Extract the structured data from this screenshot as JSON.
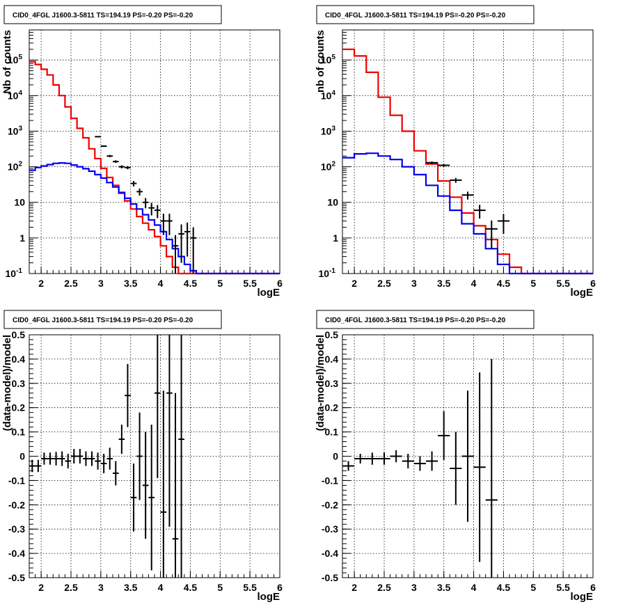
{
  "chart_data": [
    {
      "type": "line",
      "title": "CID0_4FGL J1600.3-5811 TS=194.19 PS=-0.20 PS=-0.20",
      "xlabel": "logE",
      "ylabel": "Nb of counts",
      "xlim": [
        1.8,
        6.0
      ],
      "ylim": [
        0.1,
        700000
      ],
      "yscale": "log",
      "grid": true,
      "x_ticks": [
        "2",
        "2.5",
        "3",
        "3.5",
        "4",
        "4.5",
        "5",
        "5.5",
        "6"
      ],
      "y_ticks": [
        "10^-1",
        "1",
        "10",
        "10^2",
        "10^3",
        "10^4",
        "10^5"
      ],
      "bin_edges": [
        1.8,
        1.9,
        2.0,
        2.1,
        2.2,
        2.3,
        2.4,
        2.5,
        2.6,
        2.7,
        2.8,
        2.9,
        3.0,
        3.1,
        3.2,
        3.3,
        3.4,
        3.5,
        3.6,
        3.7,
        3.8,
        3.9,
        4.0,
        4.1,
        4.2,
        4.3,
        4.4,
        4.5,
        4.6,
        4.7,
        4.8,
        4.9,
        5.0,
        5.1,
        5.2,
        5.3,
        5.4,
        5.5,
        5.6,
        5.7,
        5.8,
        5.9,
        6.0
      ],
      "series": [
        {
          "color": "#ee0000",
          "values": [
            90000,
            75000,
            55000,
            38000,
            20000,
            10000,
            4800,
            2300,
            1200,
            650,
            320,
            170,
            90,
            50,
            30,
            18,
            11,
            6.5,
            4,
            2.6,
            1.7,
            1.1,
            0.6,
            0.3,
            0.15,
            0.1,
            0.1,
            0.1,
            0.1,
            0.1,
            0.1,
            0.1,
            0.1,
            0.1,
            0.1,
            0.1,
            0.1,
            0.1,
            0.1,
            0.1,
            0.1,
            0.1
          ]
        },
        {
          "color": "#0000ee",
          "values": [
            80,
            95,
            105,
            115,
            125,
            128,
            125,
            112,
            100,
            88,
            75,
            60,
            48,
            36,
            27,
            19,
            13,
            9,
            6.5,
            4.5,
            3.2,
            2.3,
            1.5,
            0.9,
            0.5,
            0.3,
            0.18,
            0.12,
            0.1,
            0.1,
            0.1,
            0.1,
            0.1,
            0.1,
            0.1,
            0.1,
            0.1,
            0.1,
            0.1,
            0.1,
            0.1,
            0.1
          ]
        },
        {
          "color": "#000000",
          "x": [
            2.95,
            3.05,
            3.15,
            3.25,
            3.35,
            3.45,
            3.55,
            3.65,
            3.75,
            3.85,
            3.95,
            4.05,
            4.15,
            4.25,
            4.35,
            4.45,
            4.55
          ],
          "values": [
            700,
            380,
            200,
            140,
            100,
            95,
            34,
            20,
            10,
            7,
            6,
            3,
            3,
            0.6,
            1.3,
            1.5,
            1
          ],
          "errors": [
            26,
            19,
            14,
            12,
            10,
            10,
            6,
            4.5,
            3.2,
            2.7,
            2.4,
            1.8,
            1.8,
            0.6,
            1.1,
            1.2,
            1
          ]
        }
      ]
    },
    {
      "type": "line",
      "title": "CID0_4FGL J1600.3-5811 TS=194.19 PS=-0.20 PS=-0.20",
      "xlabel": "logE",
      "ylabel": "nb of counts",
      "xlim": [
        1.8,
        6.0
      ],
      "ylim": [
        0.1,
        700000
      ],
      "yscale": "log",
      "grid": true,
      "x_ticks": [
        "2",
        "2.5",
        "3",
        "3.5",
        "4",
        "4.5",
        "5",
        "5.5",
        "6"
      ],
      "y_ticks": [
        "10^-1",
        "1",
        "10",
        "10^2",
        "10^3",
        "10^4",
        "10^5"
      ],
      "bin_edges": [
        1.8,
        2.0,
        2.2,
        2.4,
        2.6,
        2.8,
        3.0,
        3.2,
        3.4,
        3.6,
        3.8,
        4.0,
        4.2,
        4.4,
        4.6,
        4.8,
        5.0,
        5.2,
        5.4,
        5.6,
        5.8,
        6.0
      ],
      "series": [
        {
          "color": "#ee0000",
          "values": [
            200000,
            130000,
            45000,
            9000,
            2800,
            1000,
            280,
            120,
            40,
            14,
            5,
            2.2,
            0.9,
            0.35,
            0.15,
            0.1,
            0.1,
            0.1,
            0.1,
            0.1,
            0.1
          ]
        },
        {
          "color": "#0000ee",
          "values": [
            180,
            230,
            240,
            200,
            160,
            100,
            60,
            30,
            15,
            6,
            2.5,
            1.3,
            0.5,
            0.18,
            0.1,
            0.1,
            0.1,
            0.1,
            0.1,
            0.1,
            0.1
          ]
        },
        {
          "color": "#000000",
          "x": [
            3.3,
            3.5,
            3.7,
            3.9,
            4.1,
            4.3,
            4.5
          ],
          "values": [
            130,
            110,
            42,
            16,
            6,
            1.8,
            3
          ],
          "errors": [
            11,
            10,
            6.5,
            4,
            2.5,
            1.3,
            1.7
          ]
        }
      ]
    },
    {
      "type": "scatter",
      "title": "CID0_4FGL J1600.3-5811 TS=194.19 PS=-0.20 PS=-0.20",
      "xlabel": "logE",
      "ylabel": "(data-model)/model",
      "xlim": [
        1.8,
        6.0
      ],
      "ylim": [
        -0.5,
        0.5
      ],
      "grid": true,
      "x_ticks": [
        "2",
        "2.5",
        "3",
        "3.5",
        "4",
        "4.5",
        "5",
        "5.5",
        "6"
      ],
      "y_ticks": [
        "-0.5",
        "-0.4",
        "-0.3",
        "-0.2",
        "-0.1",
        "0",
        "0.1",
        "0.2",
        "0.3",
        "0.4",
        "0.5"
      ],
      "series": [
        {
          "color": "#000000",
          "x": [
            1.85,
            1.95,
            2.05,
            2.15,
            2.25,
            2.35,
            2.45,
            2.55,
            2.65,
            2.75,
            2.85,
            2.95,
            3.05,
            3.15,
            3.25,
            3.35,
            3.45,
            3.55,
            3.65,
            3.75,
            3.85,
            3.95,
            4.05,
            4.15,
            4.25,
            4.35
          ],
          "values": [
            -0.04,
            -0.04,
            -0.01,
            -0.01,
            -0.01,
            -0.01,
            -0.02,
            0.0,
            0.0,
            -0.01,
            -0.01,
            -0.02,
            -0.03,
            -0.01,
            -0.07,
            0.07,
            0.25,
            -0.17,
            0.0,
            -0.12,
            -0.17,
            0.26,
            -0.23,
            0.26,
            -0.34,
            0.07
          ],
          "errors": [
            0.025,
            0.025,
            0.025,
            0.025,
            0.028,
            0.03,
            0.03,
            0.03,
            0.03,
            0.03,
            0.03,
            0.035,
            0.04,
            0.045,
            0.05,
            0.06,
            0.13,
            0.14,
            0.18,
            0.22,
            0.3,
            0.35,
            0.5,
            0.55,
            0.6,
            0.7
          ]
        }
      ]
    },
    {
      "type": "scatter",
      "title": "CID0_4FGL J1600.3-5811 TS=194.19 PS=-0.20 PS=-0.20",
      "xlabel": "logE",
      "ylabel": "(data-model)/model",
      "xlim": [
        1.8,
        6.0
      ],
      "ylim": [
        -0.5,
        0.5
      ],
      "grid": true,
      "x_ticks": [
        "2",
        "2.5",
        "3",
        "3.5",
        "4",
        "4.5",
        "5",
        "5.5",
        "6"
      ],
      "y_ticks": [
        "-0.5",
        "-0.4",
        "-0.3",
        "-0.2",
        "-0.1",
        "0",
        "0.1",
        "0.2",
        "0.3",
        "0.4",
        "0.5"
      ],
      "series": [
        {
          "color": "#000000",
          "x": [
            1.9,
            2.1,
            2.3,
            2.5,
            2.7,
            2.9,
            3.1,
            3.3,
            3.5,
            3.7,
            3.9,
            4.1,
            4.3
          ],
          "values": [
            -0.04,
            -0.01,
            -0.01,
            -0.01,
            0.0,
            -0.02,
            -0.03,
            -0.02,
            0.085,
            -0.05,
            0.0,
            -0.045,
            -0.18
          ],
          "errors": [
            0.02,
            0.02,
            0.025,
            0.025,
            0.025,
            0.03,
            0.03,
            0.04,
            0.1,
            0.15,
            0.27,
            0.39,
            0.58
          ]
        }
      ]
    }
  ]
}
